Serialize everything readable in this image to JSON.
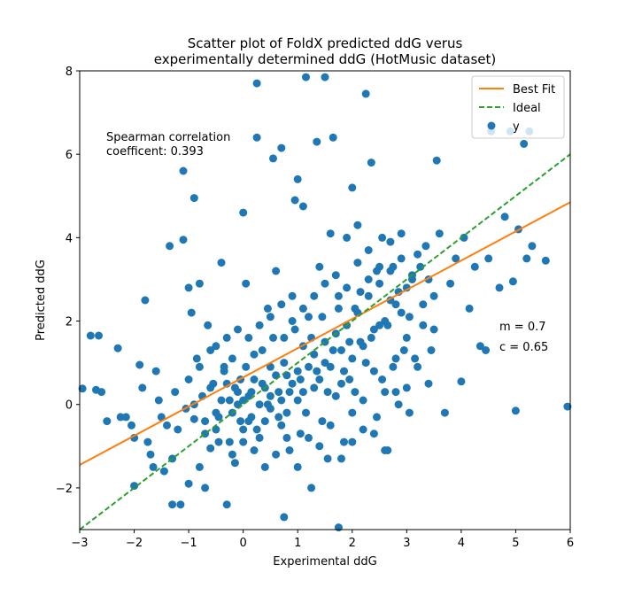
{
  "chart_data": {
    "type": "scatter",
    "title_line1": "Scatter plot of FoldX predicted ddG verus",
    "title_line2": "experimentally determined ddG (HotMusic dataset)",
    "xlabel": "Experimental ddG",
    "ylabel": "Predicted ddG",
    "xlim": [
      -3,
      6
    ],
    "ylim": [
      -3,
      8
    ],
    "xticks": [
      -3,
      -2,
      -1,
      0,
      1,
      2,
      3,
      4,
      5,
      6
    ],
    "yticks": [
      -2,
      0,
      2,
      4,
      6,
      8
    ],
    "grid": false,
    "legend_position": "top-right",
    "legend": [
      "Best Fit",
      "Ideal",
      "y"
    ],
    "annotation_spearman_line1": "Spearman correlation",
    "annotation_spearman_line2": "coefficent: 0.393",
    "annotation_m": "m = 0.7",
    "annotation_c": "c = 0.65",
    "colors": {
      "points": "#1f77b4",
      "best_fit": "#ff7f0e",
      "ideal": "#2ca02c"
    },
    "best_fit": {
      "slope": 0.7,
      "intercept": 0.65
    },
    "ideal": {
      "slope": 1,
      "intercept": 0
    },
    "series": [
      {
        "type": "scatter",
        "points": [
          [
            -2.95,
            0.38
          ],
          [
            -2.8,
            1.65
          ],
          [
            -2.65,
            1.65
          ],
          [
            -2.7,
            0.35
          ],
          [
            -2.6,
            0.3
          ],
          [
            -2.5,
            -0.4
          ],
          [
            -2.3,
            1.35
          ],
          [
            -2.25,
            -0.3
          ],
          [
            -2.15,
            -0.3
          ],
          [
            -2.05,
            -0.5
          ],
          [
            -2.0,
            -1.95
          ],
          [
            -2.0,
            -0.8
          ],
          [
            -1.9,
            0.95
          ],
          [
            -1.85,
            0.4
          ],
          [
            -1.8,
            2.5
          ],
          [
            -1.75,
            -0.9
          ],
          [
            -1.7,
            -1.2
          ],
          [
            -1.65,
            -1.5
          ],
          [
            -1.6,
            0.8
          ],
          [
            -1.55,
            0.1
          ],
          [
            -1.5,
            -0.3
          ],
          [
            -1.45,
            -1.6
          ],
          [
            -1.4,
            -0.5
          ],
          [
            -1.35,
            3.8
          ],
          [
            -1.3,
            -2.4
          ],
          [
            -1.3,
            -1.3
          ],
          [
            -1.25,
            0.3
          ],
          [
            -1.2,
            -0.6
          ],
          [
            -1.15,
            -2.4
          ],
          [
            -1.1,
            3.95
          ],
          [
            -1.1,
            5.6
          ],
          [
            -1.05,
            -0.1
          ],
          [
            -1.0,
            2.8
          ],
          [
            -1.0,
            -1.9
          ],
          [
            -0.95,
            2.2
          ],
          [
            -0.9,
            4.95
          ],
          [
            -0.9,
            -0.35
          ],
          [
            -0.85,
            1.1
          ],
          [
            -0.8,
            -1.5
          ],
          [
            -0.8,
            2.9
          ],
          [
            -0.75,
            0.2
          ],
          [
            -0.7,
            -2.0
          ],
          [
            -0.7,
            -0.7
          ],
          [
            -0.65,
            1.9
          ],
          [
            -0.6,
            -1.05
          ],
          [
            -0.55,
            0.5
          ],
          [
            -0.5,
            -0.2
          ],
          [
            -0.5,
            1.4
          ],
          [
            -0.45,
            -0.9
          ],
          [
            -0.4,
            3.4
          ],
          [
            -0.35,
            0.8
          ],
          [
            -0.3,
            -2.4
          ],
          [
            -0.25,
            0.1
          ],
          [
            -0.2,
            1.1
          ],
          [
            -0.15,
            -1.4
          ],
          [
            -0.1,
            0.0
          ],
          [
            -0.05,
            0.6
          ],
          [
            0.0,
            -0.6
          ],
          [
            0.0,
            4.6
          ],
          [
            0.05,
            2.9
          ],
          [
            0.1,
            0.2
          ],
          [
            0.15,
            -0.3
          ],
          [
            0.2,
            1.2
          ],
          [
            0.25,
            6.4
          ],
          [
            0.25,
            7.7
          ],
          [
            0.3,
            -0.8
          ],
          [
            0.35,
            0.5
          ],
          [
            0.4,
            -1.5
          ],
          [
            0.45,
            2.3
          ],
          [
            0.5,
            0.9
          ],
          [
            0.5,
            -0.1
          ],
          [
            0.55,
            5.9
          ],
          [
            0.6,
            3.2
          ],
          [
            0.65,
            0.3
          ],
          [
            0.7,
            -0.5
          ],
          [
            0.7,
            6.15
          ],
          [
            0.75,
            1.6
          ],
          [
            0.75,
            -2.7
          ],
          [
            0.8,
            0.7
          ],
          [
            0.85,
            -1.1
          ],
          [
            0.9,
            2.6
          ],
          [
            0.95,
            4.9
          ],
          [
            1.0,
            0.1
          ],
          [
            1.0,
            5.4
          ],
          [
            1.05,
            -0.7
          ],
          [
            1.1,
            1.4
          ],
          [
            1.1,
            4.75
          ],
          [
            1.15,
            7.85
          ],
          [
            1.2,
            2.1
          ],
          [
            1.25,
            -2.0
          ],
          [
            1.3,
            0.4
          ],
          [
            1.35,
            6.3
          ],
          [
            1.4,
            3.3
          ],
          [
            1.45,
            -0.4
          ],
          [
            1.5,
            7.85
          ],
          [
            1.5,
            1.0
          ],
          [
            1.55,
            -1.3
          ],
          [
            1.6,
            4.1
          ],
          [
            1.65,
            6.4
          ],
          [
            1.7,
            0.2
          ],
          [
            1.75,
            -2.95
          ],
          [
            1.75,
            2.6
          ],
          [
            1.8,
            1.3
          ],
          [
            1.85,
            -0.9
          ],
          [
            1.9,
            4.0
          ],
          [
            1.95,
            0.6
          ],
          [
            2.0,
            5.2
          ],
          [
            2.0,
            -0.2
          ],
          [
            2.05,
            2.3
          ],
          [
            2.1,
            4.3
          ],
          [
            2.15,
            1.5
          ],
          [
            2.2,
            -0.6
          ],
          [
            2.25,
            7.45
          ],
          [
            2.3,
            3.0
          ],
          [
            2.35,
            5.8
          ],
          [
            2.4,
            0.8
          ],
          [
            2.45,
            -0.3
          ],
          [
            2.5,
            1.9
          ],
          [
            2.55,
            4.0
          ],
          [
            2.6,
            0.3
          ],
          [
            2.65,
            -1.1
          ],
          [
            2.7,
            2.5
          ],
          [
            2.75,
            3.3
          ],
          [
            2.8,
            1.1
          ],
          [
            2.85,
            0.0
          ],
          [
            2.9,
            4.1
          ],
          [
            3.0,
            1.6
          ],
          [
            3.05,
            -0.2
          ],
          [
            3.1,
            3.0
          ],
          [
            3.2,
            0.9
          ],
          [
            3.3,
            2.4
          ],
          [
            3.35,
            3.8
          ],
          [
            3.4,
            0.5
          ],
          [
            3.5,
            1.8
          ],
          [
            3.55,
            5.85
          ],
          [
            3.6,
            4.1
          ],
          [
            3.7,
            -0.2
          ],
          [
            3.8,
            2.9
          ],
          [
            3.9,
            3.5
          ],
          [
            4.0,
            0.55
          ],
          [
            4.05,
            4.0
          ],
          [
            4.15,
            2.3
          ],
          [
            4.25,
            3.3
          ],
          [
            4.35,
            1.4
          ],
          [
            4.45,
            1.3
          ],
          [
            4.5,
            3.5
          ],
          [
            4.55,
            6.55
          ],
          [
            4.7,
            2.8
          ],
          [
            4.8,
            4.5
          ],
          [
            4.9,
            6.55
          ],
          [
            4.95,
            2.95
          ],
          [
            5.0,
            -0.15
          ],
          [
            5.05,
            4.2
          ],
          [
            5.15,
            6.25
          ],
          [
            5.2,
            3.5
          ],
          [
            5.25,
            6.55
          ],
          [
            5.3,
            3.8
          ],
          [
            5.55,
            3.45
          ],
          [
            5.95,
            -0.05
          ],
          [
            -0.4,
            0.1
          ],
          [
            -0.3,
            0.5
          ],
          [
            -0.2,
            -0.2
          ],
          [
            -0.1,
            0.3
          ],
          [
            0.0,
            0.1
          ],
          [
            0.1,
            -0.4
          ],
          [
            0.2,
            0.6
          ],
          [
            0.3,
            0.0
          ],
          [
            0.4,
            0.4
          ],
          [
            0.5,
            0.2
          ],
          [
            0.6,
            0.7
          ],
          [
            0.7,
            0.1
          ],
          [
            0.8,
            -0.2
          ],
          [
            0.9,
            0.5
          ],
          [
            1.0,
            0.8
          ],
          [
            1.1,
            0.3
          ],
          [
            1.2,
            0.9
          ],
          [
            1.3,
            1.2
          ],
          [
            1.4,
            0.6
          ],
          [
            1.5,
            1.5
          ],
          [
            1.6,
            0.9
          ],
          [
            1.7,
            1.7
          ],
          [
            1.8,
            0.5
          ],
          [
            1.9,
            1.9
          ],
          [
            2.0,
            1.1
          ],
          [
            2.1,
            2.2
          ],
          [
            2.2,
            1.4
          ],
          [
            2.3,
            2.6
          ],
          [
            2.4,
            1.8
          ],
          [
            2.5,
            2.9
          ],
          [
            2.6,
            2.0
          ],
          [
            2.7,
            3.2
          ],
          [
            2.8,
            2.4
          ],
          [
            2.9,
            3.5
          ],
          [
            3.0,
            2.8
          ],
          [
            3.1,
            3.1
          ],
          [
            3.2,
            3.6
          ],
          [
            3.3,
            1.9
          ],
          [
            3.4,
            3.0
          ],
          [
            3.5,
            2.6
          ],
          [
            -0.6,
            0.4
          ],
          [
            -0.5,
            -0.6
          ],
          [
            -0.35,
            0.9
          ],
          [
            -0.25,
            -0.9
          ],
          [
            -0.15,
            0.4
          ],
          [
            -0.05,
            -0.4
          ],
          [
            0.05,
            0.9
          ],
          [
            0.15,
            0.3
          ],
          [
            0.25,
            -0.6
          ],
          [
            0.35,
            1.3
          ],
          [
            0.45,
            0.0
          ],
          [
            0.55,
            1.6
          ],
          [
            0.65,
            -0.3
          ],
          [
            0.75,
            1.0
          ],
          [
            0.85,
            0.3
          ],
          [
            0.95,
            1.8
          ],
          [
            1.05,
            0.6
          ],
          [
            1.15,
            -0.2
          ],
          [
            1.25,
            1.6
          ],
          [
            1.35,
            0.8
          ],
          [
            1.45,
            2.1
          ],
          [
            1.55,
            0.3
          ],
          [
            1.65,
            1.3
          ],
          [
            1.75,
            2.3
          ],
          [
            1.85,
            0.8
          ],
          [
            1.95,
            1.5
          ],
          [
            2.05,
            0.3
          ],
          [
            2.15,
            2.7
          ],
          [
            2.25,
            1.0
          ],
          [
            2.35,
            1.6
          ],
          [
            2.45,
            3.2
          ],
          [
            2.55,
            0.6
          ],
          [
            2.65,
            1.9
          ],
          [
            2.75,
            0.9
          ],
          [
            2.85,
            2.7
          ],
          [
            2.95,
            1.3
          ],
          [
            3.05,
            2.1
          ],
          [
            3.15,
            1.1
          ],
          [
            3.25,
            3.3
          ],
          [
            3.45,
            1.3
          ],
          [
            -1.0,
            0.6
          ],
          [
            -0.9,
            0.0
          ],
          [
            -0.8,
            0.9
          ],
          [
            -0.7,
            -0.4
          ],
          [
            -0.6,
            1.3
          ],
          [
            -0.45,
            -0.3
          ],
          [
            -0.3,
            1.6
          ],
          [
            -0.2,
            -1.2
          ],
          [
            -0.1,
            1.8
          ],
          [
            0.0,
            -0.9
          ],
          [
            0.1,
            1.6
          ],
          [
            0.2,
            -1.1
          ],
          [
            0.3,
            1.9
          ],
          [
            0.4,
            -0.4
          ],
          [
            0.5,
            2.1
          ],
          [
            0.6,
            -1.2
          ],
          [
            0.7,
            2.4
          ],
          [
            0.8,
            -0.8
          ],
          [
            0.9,
            2.0
          ],
          [
            1.0,
            -1.5
          ],
          [
            1.1,
            2.3
          ],
          [
            1.2,
            -0.8
          ],
          [
            1.3,
            2.6
          ],
          [
            1.4,
            -1.0
          ],
          [
            1.5,
            2.9
          ],
          [
            1.6,
            -0.5
          ],
          [
            1.7,
            3.1
          ],
          [
            1.8,
            -1.3
          ],
          [
            1.9,
            2.8
          ],
          [
            2.0,
            -0.9
          ],
          [
            2.1,
            3.4
          ],
          [
            2.2,
            0.1
          ],
          [
            2.3,
            3.7
          ],
          [
            2.4,
            -0.7
          ],
          [
            2.5,
            3.3
          ],
          [
            2.6,
            -1.1
          ],
          [
            2.7,
            3.9
          ],
          [
            2.8,
            0.3
          ],
          [
            2.9,
            2.2
          ],
          [
            3.0,
            0.4
          ]
        ]
      }
    ]
  }
}
